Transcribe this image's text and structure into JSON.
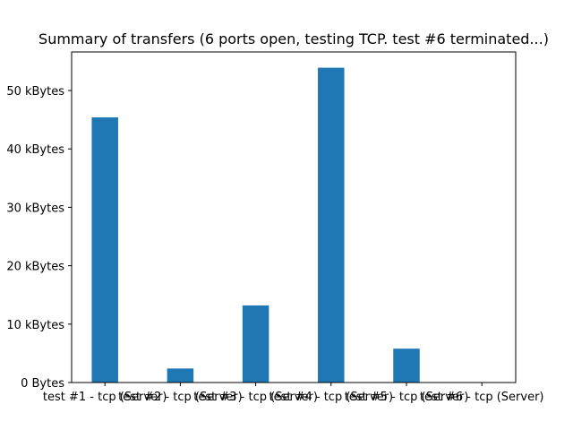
{
  "chart_data": {
    "type": "bar",
    "title": "Summary of transfers (6 ports open, testing TCP. test #6 terminated...)",
    "xlabel": "",
    "ylabel": "",
    "categories": [
      "test #1 - tcp (Server)",
      "test #2 - tcp (Server)",
      "test #3 - tcp (Server)",
      "test #4 - tcp (Server)",
      "test #5 - tcp (Server)",
      "test #6 - tcp (Server)"
    ],
    "values": [
      45.4,
      2.4,
      13.2,
      53.9,
      5.8,
      0
    ],
    "value_unit": "kBytes",
    "ylim": [
      0,
      56.6
    ],
    "yticks": [
      0,
      10,
      20,
      30,
      40,
      50
    ],
    "ytick_labels": [
      "0 Bytes",
      "10 kBytes",
      "20 kBytes",
      "30 kBytes",
      "40 kBytes",
      "50 kBytes"
    ],
    "bar_color": "#1f77b4",
    "grid": false,
    "legend": "none"
  }
}
